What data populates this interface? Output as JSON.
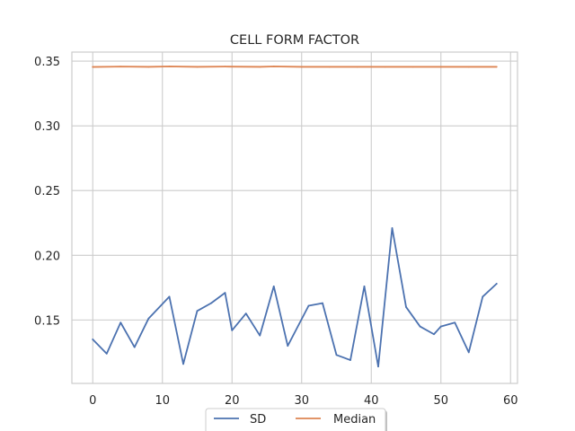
{
  "chart_data": {
    "type": "line",
    "title": "CELL FORM FACTOR",
    "xlabel": "",
    "ylabel": "",
    "xlim": [
      -3,
      61
    ],
    "ylim": [
      0.101,
      0.357
    ],
    "x_ticks": [
      0,
      10,
      20,
      30,
      40,
      50,
      60
    ],
    "y_ticks": [
      0.15,
      0.2,
      0.25,
      0.3,
      0.35
    ],
    "x_tick_labels": [
      "0",
      "10",
      "20",
      "30",
      "40",
      "50",
      "60"
    ],
    "y_tick_labels": [
      "0.15",
      "0.20",
      "0.25",
      "0.30",
      "0.35"
    ],
    "grid": true,
    "legend_position": "bottom-center",
    "series": [
      {
        "name": "SD",
        "color": "#4c72b0",
        "x": [
          0,
          2,
          4,
          6,
          8,
          11,
          13,
          15,
          17,
          19,
          20,
          22,
          24,
          26,
          28,
          31,
          33,
          35,
          37,
          39,
          41,
          43,
          45,
          47,
          49,
          50,
          52,
          54,
          56,
          58
        ],
        "values": [
          0.135,
          0.124,
          0.148,
          0.129,
          0.151,
          0.168,
          0.116,
          0.157,
          0.163,
          0.171,
          0.142,
          0.155,
          0.138,
          0.176,
          0.13,
          0.161,
          0.163,
          0.123,
          0.119,
          0.176,
          0.114,
          0.221,
          0.16,
          0.145,
          0.139,
          0.145,
          0.148,
          0.125,
          0.168,
          0.178
        ]
      },
      {
        "name": "Median",
        "color": "#dd8452",
        "x": [
          0,
          4,
          8,
          11,
          15,
          19,
          24,
          26,
          30,
          34,
          38,
          42,
          46,
          50,
          54,
          58
        ],
        "values": [
          0.3455,
          0.3458,
          0.3456,
          0.3459,
          0.3456,
          0.3458,
          0.3456,
          0.3459,
          0.3456,
          0.3456,
          0.3456,
          0.3456,
          0.3456,
          0.3456,
          0.3456,
          0.3456
        ]
      }
    ]
  }
}
